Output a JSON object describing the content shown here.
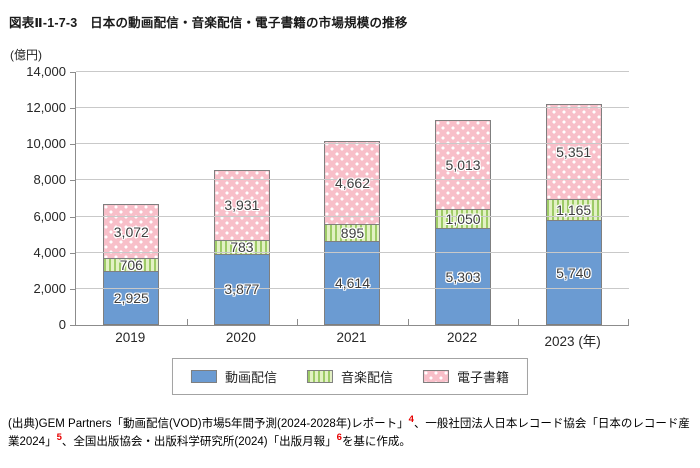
{
  "title": "図表Ⅱ-1-7-3　日本の動画配信・音楽配信・電子書籍の市場規模の推移",
  "unit_label": "(億円)",
  "chart_data": {
    "type": "bar",
    "stacked": true,
    "title": "日本の動画配信・音楽配信・電子書籍の市場規模の推移",
    "ylabel": "(億円)",
    "ylim": [
      0,
      14000
    ],
    "ytick_step": 2000,
    "grid": true,
    "legend_position": "bottom",
    "categories": [
      "2019",
      "2020",
      "2021",
      "2022",
      "2023"
    ],
    "category_labels": [
      "2019",
      "2020",
      "2021",
      "2022",
      "2023 (年)"
    ],
    "yticks": [
      {
        "value": 0,
        "label": "0"
      },
      {
        "value": 2000,
        "label": "2,000"
      },
      {
        "value": 4000,
        "label": "4,000"
      },
      {
        "value": 6000,
        "label": "6,000"
      },
      {
        "value": 8000,
        "label": "8,000"
      },
      {
        "value": 10000,
        "label": "10,000"
      },
      {
        "value": 12000,
        "label": "12,000"
      },
      {
        "value": 14000,
        "label": "14,000"
      }
    ],
    "series": [
      {
        "name": "動画配信",
        "pattern": "video",
        "color": "#6b9bd2",
        "values": [
          2925,
          3877,
          4614,
          5303,
          5740
        ],
        "value_labels": [
          "2,925",
          "3,877",
          "4,614",
          "5,303",
          "5,740"
        ]
      },
      {
        "name": "音楽配信",
        "pattern": "music",
        "color": "#c9e29e",
        "values": [
          706,
          783,
          895,
          1050,
          1165
        ],
        "value_labels": [
          "706",
          "783",
          "895",
          "1,050",
          "1,165"
        ]
      },
      {
        "name": "電子書籍",
        "pattern": "ebook",
        "color": "#f8bfc9",
        "values": [
          3072,
          3931,
          4662,
          5013,
          5351
        ],
        "value_labels": [
          "3,072",
          "3,931",
          "4,662",
          "5,013",
          "5,351"
        ]
      }
    ]
  },
  "colors": {
    "video": "#6b9bd2",
    "music_base": "#e3f1c4",
    "music_stripe": "#9ecb67",
    "ebook": "#f8bfc9",
    "grid": "#c9c9c9",
    "axis": "#8c8c8c",
    "value_label": "#3d3d3d",
    "footnote_ref": "#e60000"
  },
  "source": {
    "segments": [
      {
        "text": "(出典)GEM Partners「動画配信(VOD)市場5年間予測(2024-2028年)レポート」",
        "sup": false
      },
      {
        "text": "4",
        "sup": true
      },
      {
        "text": "、一般社団法人日本レコード協会「日本のレコード産業2024」",
        "sup": false
      },
      {
        "text": "5",
        "sup": true
      },
      {
        "text": "、全国出版協会・出版科学研究所(2024)「出版月報」",
        "sup": false
      },
      {
        "text": "6",
        "sup": true
      },
      {
        "text": "を基に作成。",
        "sup": false
      }
    ]
  }
}
